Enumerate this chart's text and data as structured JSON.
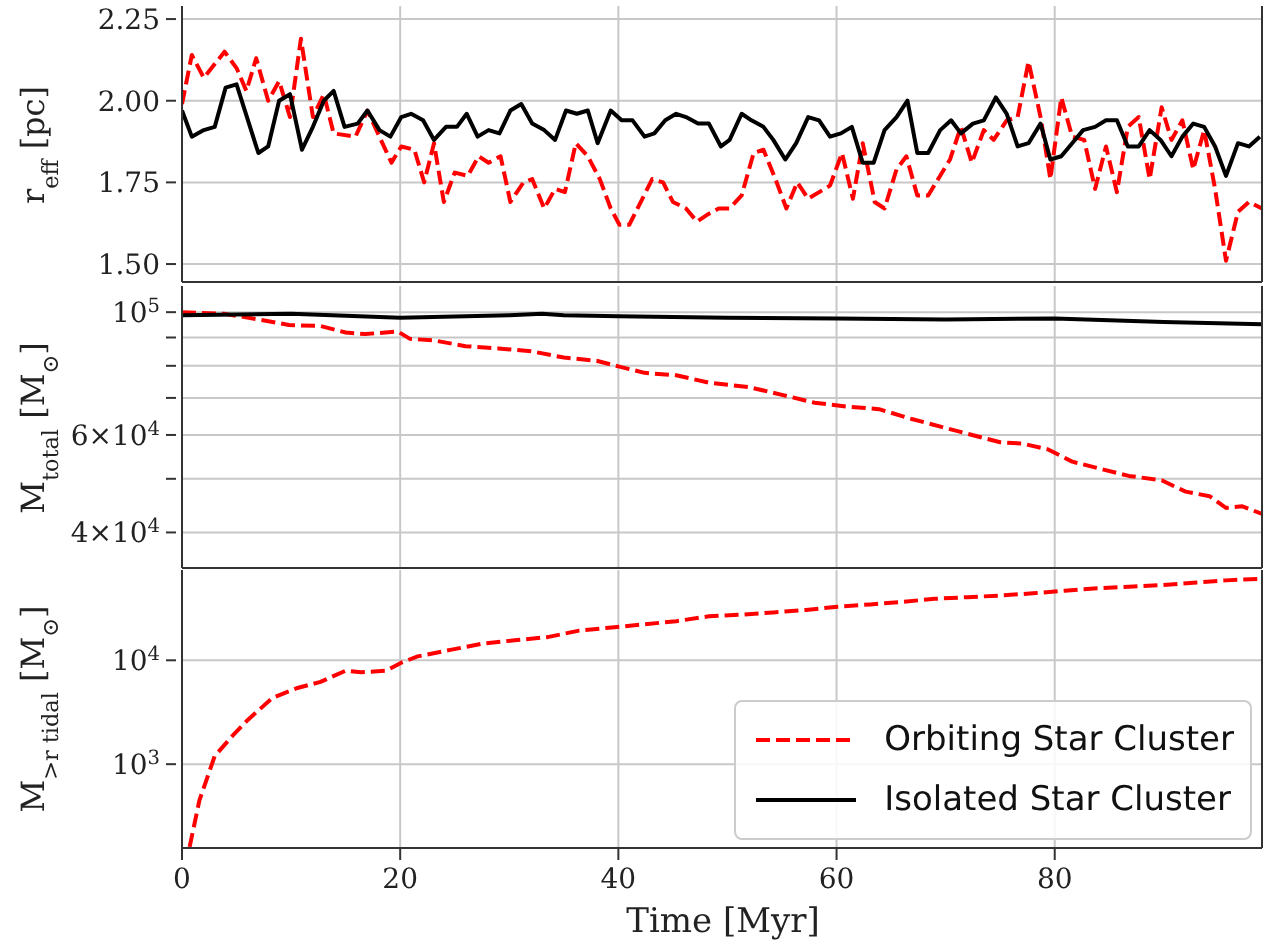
{
  "chart_data": [
    {
      "type": "line",
      "ylabel": "r$_{eff}$ [pc]",
      "xlim": [
        0,
        99
      ],
      "xticks": [
        0,
        20,
        40,
        60,
        80
      ],
      "ylim": [
        1.445,
        2.29
      ],
      "yticks": [
        {
          "value": 1.5,
          "label": "1.50"
        },
        {
          "value": 1.75,
          "label": "1.75"
        },
        {
          "value": 2.0,
          "label": "2.00"
        },
        {
          "value": 2.25,
          "label": "2.25"
        }
      ],
      "grid": true,
      "tick_labels": "y",
      "legend": false,
      "series": [
        {
          "color": "#ff0000",
          "line_style": "dashed",
          "x": [
            0,
            0.9,
            2,
            3.9,
            5,
            5.9,
            6.8,
            7.9,
            8.9,
            9.9,
            10.9,
            12,
            13,
            13.9,
            15.9,
            17,
            19.2,
            20.1,
            21.3,
            22.2,
            23.1,
            24,
            25,
            26.2,
            27.2,
            28.1,
            29.2,
            30.1,
            31.3,
            32.1,
            33.2,
            34.2,
            35.1,
            36.1,
            37.2,
            38.3,
            39.3,
            40.1,
            41,
            43.1,
            44.1,
            45,
            46.2,
            47.2,
            48.1,
            49.2,
            50.2,
            51.3,
            52.4,
            53.3,
            54.4,
            55.4,
            56.4,
            57.4,
            59.4,
            60.5,
            61.5,
            62.4,
            63.5,
            64.4,
            65.5,
            66.4,
            67.4,
            68.4,
            70.4,
            71.4,
            72.4,
            73.5,
            74.4,
            75.6,
            76.6,
            77.6,
            78.7,
            79.6,
            80.6,
            81.6,
            82.7,
            83.7,
            84.7,
            85.7,
            86.7,
            87.7,
            88.7,
            89.8,
            90.7,
            91.7,
            92.7,
            93.7,
            94.7,
            95.7,
            96.8,
            97.8,
            99
          ],
          "values": [
            1.99,
            2.14,
            2.07,
            2.15,
            2.1,
            2.03,
            2.13,
            2.0,
            2.06,
            1.95,
            2.19,
            1.95,
            2.02,
            1.9,
            1.89,
            1.97,
            1.81,
            1.86,
            1.85,
            1.75,
            1.87,
            1.69,
            1.78,
            1.77,
            1.83,
            1.81,
            1.83,
            1.69,
            1.75,
            1.76,
            1.67,
            1.73,
            1.72,
            1.87,
            1.83,
            1.76,
            1.67,
            1.62,
            1.62,
            1.76,
            1.75,
            1.69,
            1.67,
            1.63,
            1.65,
            1.67,
            1.67,
            1.71,
            1.84,
            1.85,
            1.76,
            1.67,
            1.75,
            1.7,
            1.74,
            1.84,
            1.7,
            1.87,
            1.69,
            1.67,
            1.79,
            1.83,
            1.71,
            1.71,
            1.82,
            1.92,
            1.81,
            1.91,
            1.88,
            1.94,
            1.95,
            2.12,
            1.95,
            1.76,
            2.01,
            1.89,
            1.88,
            1.73,
            1.86,
            1.72,
            1.92,
            1.95,
            1.76,
            1.98,
            1.88,
            1.94,
            1.79,
            1.91,
            1.73,
            1.51,
            1.66,
            1.69,
            1.67
          ]
        },
        {
          "color": "#000000",
          "line_style": "solid",
          "x": [
            0,
            0.9,
            2,
            3,
            4,
            5,
            7,
            7.9,
            8.9,
            9.9,
            11,
            12,
            13,
            13.9,
            14.9,
            16.1,
            17,
            18.1,
            19.1,
            20.1,
            21,
            22.1,
            23.1,
            24.2,
            25.2,
            26.1,
            27.1,
            28.1,
            29.1,
            30.1,
            31.1,
            32.1,
            33.2,
            34.2,
            35.2,
            36.2,
            37.2,
            38.1,
            39.3,
            40.3,
            41.3,
            42.4,
            43.3,
            44.3,
            45.3,
            46.2,
            47.3,
            48.3,
            49.4,
            50.2,
            51.3,
            52.2,
            53.3,
            54.2,
            55.3,
            56.3,
            57.4,
            58.4,
            59.4,
            60.4,
            61.4,
            62.4,
            63.4,
            64.4,
            65.5,
            66.5,
            67.4,
            68.4,
            69.5,
            70.5,
            71.4,
            72.5,
            73.5,
            74.6,
            75.6,
            76.6,
            77.6,
            78.7,
            79.6,
            80.6,
            81.6,
            82.6,
            83.7,
            84.7,
            85.7,
            86.7,
            87.7,
            88.7,
            89.7,
            90.7,
            91.7,
            92.7,
            93.7,
            94.7,
            95.7,
            96.8,
            97.8,
            98.8
          ],
          "values": [
            1.97,
            1.89,
            1.91,
            1.92,
            2.04,
            2.05,
            1.84,
            1.86,
            2.0,
            2.02,
            1.85,
            1.92,
            2.0,
            2.03,
            1.92,
            1.93,
            1.97,
            1.91,
            1.89,
            1.95,
            1.96,
            1.94,
            1.88,
            1.92,
            1.92,
            1.96,
            1.89,
            1.91,
            1.9,
            1.97,
            1.99,
            1.93,
            1.91,
            1.88,
            1.97,
            1.96,
            1.97,
            1.87,
            1.97,
            1.94,
            1.94,
            1.89,
            1.9,
            1.94,
            1.96,
            1.95,
            1.93,
            1.93,
            1.86,
            1.88,
            1.96,
            1.94,
            1.92,
            1.88,
            1.82,
            1.87,
            1.95,
            1.94,
            1.89,
            1.9,
            1.92,
            1.81,
            1.81,
            1.91,
            1.95,
            2.0,
            1.84,
            1.84,
            1.91,
            1.94,
            1.9,
            1.93,
            1.94,
            2.01,
            1.96,
            1.86,
            1.87,
            1.93,
            1.82,
            1.83,
            1.87,
            1.91,
            1.92,
            1.94,
            1.94,
            1.86,
            1.86,
            1.91,
            1.88,
            1.83,
            1.89,
            1.93,
            1.92,
            1.86,
            1.77,
            1.87,
            1.86,
            1.89
          ]
        }
      ]
    },
    {
      "type": "line",
      "ylabel": "M$_{total}$ [M$_{⊙}$]",
      "log": "y",
      "xlim": [
        0,
        99
      ],
      "xticks": [
        0,
        20,
        40,
        60,
        80
      ],
      "ylim": [
        34500,
        111500
      ],
      "yticks": [
        {
          "value": 40000,
          "label": "4×10$^{4}$"
        },
        {
          "value": 50000,
          "label": null
        },
        {
          "value": 60000,
          "label": "6×10$^{4}$"
        },
        {
          "value": 70000,
          "label": null
        },
        {
          "value": 80000,
          "label": null
        },
        {
          "value": 90000,
          "label": null
        },
        {
          "value": 100000,
          "label": "10$^{5}$"
        }
      ],
      "grid": true,
      "tick_labels": "y",
      "legend": false,
      "series": [
        {
          "color": "#ff0000",
          "line_style": "dashed",
          "x": [
            0,
            3.9,
            5.3,
            8.3,
            9.8,
            12.7,
            15,
            16.8,
            19.8,
            20.9,
            23.1,
            26,
            29,
            32,
            35,
            38,
            40,
            42.4,
            45.3,
            48.3,
            52,
            55,
            58,
            61,
            63.9,
            66.8,
            69.7,
            72.7,
            75,
            77,
            79.4,
            81.6,
            83.9,
            86.8,
            89.8,
            92,
            94.2,
            95.7,
            97.2,
            99
          ],
          "values": [
            100000,
            99300,
            98300,
            96000,
            94800,
            94400,
            91900,
            91300,
            92250,
            89500,
            88900,
            86800,
            86000,
            85000,
            82800,
            81700,
            79800,
            77700,
            76900,
            74600,
            73200,
            70900,
            68600,
            67500,
            66800,
            64200,
            62000,
            59800,
            58200,
            57900,
            56500,
            53700,
            52300,
            50600,
            49700,
            47400,
            46500,
            44300,
            44600,
            43200
          ]
        },
        {
          "color": "#000000",
          "line_style": "solid",
          "x": [
            0,
            10,
            20,
            30,
            33,
            35,
            40,
            50,
            60,
            70,
            80,
            90,
            99
          ],
          "values": [
            98700,
            99300,
            97700,
            98700,
            99300,
            98700,
            98300,
            97700,
            97400,
            97000,
            97400,
            96000,
            95100
          ]
        }
      ]
    },
    {
      "type": "line",
      "ylabel": "M$_{>r tidal}$ [M$_{⊙}$]",
      "xlabel": "Time [Myr]",
      "log": "y",
      "xlim": [
        0,
        99
      ],
      "xticks": [
        0,
        20,
        40,
        60,
        80
      ],
      "ylim": [
        156,
        74000
      ],
      "yticks": [
        {
          "value": 1000,
          "label": "10$^{3}$"
        },
        {
          "value": 10000,
          "label": "10$^{4}$"
        }
      ],
      "grid": true,
      "legend": "lower right",
      "series": [
        {
          "name": "Orbiting Star Cluster",
          "color": "#ff0000",
          "line_style": "dashed",
          "x": [
            0.7,
            1.6,
            3,
            4.6,
            6,
            8.3,
            10.5,
            12.7,
            15,
            16.4,
            18.7,
            20.1,
            21.6,
            24.6,
            27.6,
            30.5,
            33.5,
            36.4,
            39.4,
            42.4,
            45.3,
            48.3,
            51.3,
            54.2,
            57.2,
            60.1,
            63.1,
            66,
            69,
            72,
            75,
            78,
            80.9,
            83.9,
            86.8,
            89.8,
            92.7,
            95.7,
            99
          ],
          "values": [
            160,
            450,
            1200,
            1860,
            2650,
            4350,
            5380,
            6200,
            7940,
            7670,
            7940,
            9480,
            10900,
            12600,
            14500,
            15600,
            16700,
            19300,
            20700,
            22200,
            23800,
            26500,
            27500,
            28900,
            30500,
            32800,
            34500,
            36500,
            39100,
            40500,
            42000,
            44200,
            46700,
            49300,
            51000,
            52900,
            55700,
            58800,
            61000
          ]
        },
        {
          "name": "Isolated Star Cluster",
          "color": "#000000",
          "line_style": "solid"
        }
      ]
    }
  ]
}
